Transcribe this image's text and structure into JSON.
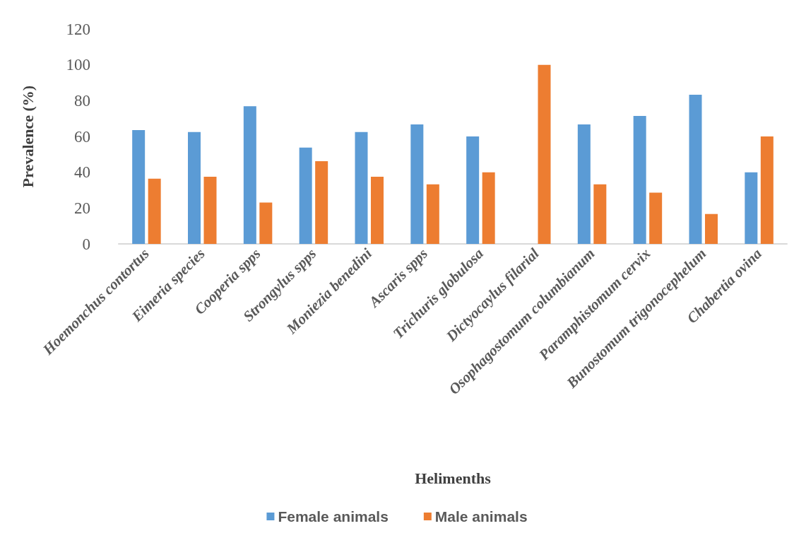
{
  "chart_data": {
    "type": "bar",
    "xlabel": "Helimenths",
    "ylabel": "Prevalence (%)",
    "categories": [
      "Hoemonchus contortus",
      "Eimeria species",
      "Cooperia spps",
      "Strongylus spps",
      "Moniezia benedini",
      "Ascaris spps",
      "Trichuris globulosa",
      "Dictyocaylus filarial",
      "Osophagostomum columbianum",
      "Paramphistomum cervix",
      "Bunostomum trigonocephelum",
      "Chabertia ovina"
    ],
    "series": [
      {
        "name": "Female animals",
        "color": "#5b9bd5",
        "values": [
          63.6,
          62.5,
          76.9,
          53.8,
          62.5,
          66.7,
          60,
          0,
          66.7,
          71.4,
          83.3,
          40
        ]
      },
      {
        "name": "Male animals",
        "color": "#ed7d31",
        "values": [
          36.4,
          37.5,
          23.1,
          46.2,
          37.5,
          33.3,
          40,
          100,
          33.3,
          28.6,
          16.7,
          60
        ]
      }
    ],
    "ylim": [
      0,
      120
    ],
    "yticks": [
      0,
      20,
      40,
      60,
      80,
      100,
      120
    ],
    "grid": false,
    "legend": "bottom"
  }
}
